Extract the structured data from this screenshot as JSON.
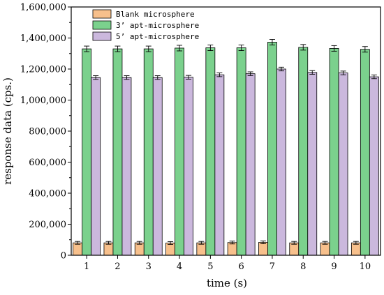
{
  "chart_data": {
    "type": "bar",
    "title": "",
    "xlabel": "time (s)",
    "ylabel": "response data (cps.)",
    "categories": [
      "1",
      "2",
      "3",
      "4",
      "5",
      "6",
      "7",
      "8",
      "9",
      "10"
    ],
    "ylim": [
      0,
      1600000
    ],
    "yticks": [
      0,
      200000,
      400000,
      600000,
      800000,
      1000000,
      1200000,
      1400000,
      1600000
    ],
    "ytick_labels": [
      "0",
      "200,000",
      "400,000",
      "600,000",
      "800,000",
      "1,000,000",
      "1,200,000",
      "1,400,000",
      "1,600,000"
    ],
    "grid": false,
    "legend_position": "top-left",
    "series": [
      {
        "name": "Blank microsphere",
        "color": "#f7c08c",
        "values": [
          80000,
          80000,
          80000,
          79000,
          80000,
          82000,
          83000,
          80000,
          80000,
          80000
        ],
        "errors": [
          9000,
          9000,
          9000,
          9000,
          9000,
          9000,
          9000,
          9000,
          9000,
          9000
        ]
      },
      {
        "name": "3’ apt-microsphere",
        "color": "#7bd18d",
        "values": [
          1330000,
          1330000,
          1330000,
          1335000,
          1337000,
          1337000,
          1373000,
          1340000,
          1333000,
          1327000
        ],
        "errors": [
          18000,
          18000,
          18000,
          18000,
          18000,
          18000,
          18000,
          18000,
          18000,
          18000
        ]
      },
      {
        "name": "5’ apt-microsphere",
        "color": "#cbb8dd",
        "values": [
          1145000,
          1145000,
          1145000,
          1147000,
          1163000,
          1170000,
          1200000,
          1178000,
          1175000,
          1150000
        ],
        "errors": [
          12000,
          12000,
          12000,
          12000,
          12000,
          12000,
          12000,
          12000,
          12000,
          12000
        ]
      }
    ]
  }
}
